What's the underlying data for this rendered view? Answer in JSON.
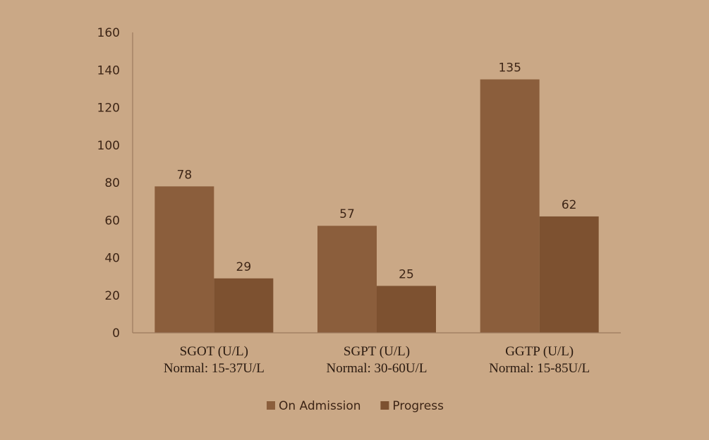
{
  "chart_data": {
    "type": "bar",
    "categories": [
      [
        "SGOT (U/L)",
        "Normal: 15-37U/L"
      ],
      [
        "SGPT (U/L)",
        "Normal: 30-60U/L"
      ],
      [
        "GGTP (U/L)",
        "Normal: 15-85U/L"
      ]
    ],
    "series": [
      {
        "name": "On Admission",
        "values": [
          78,
          57,
          135
        ],
        "color": "#8b5e3c"
      },
      {
        "name": "Progress",
        "values": [
          29,
          25,
          62
        ],
        "color": "#7d5130"
      }
    ],
    "ylim": [
      0,
      160
    ],
    "yticks": [
      0,
      20,
      40,
      60,
      80,
      100,
      120,
      140,
      160
    ],
    "grid": false,
    "legend": "bottom-center",
    "axis_color": "#9c7a5e",
    "text_color": "#3d2516"
  }
}
